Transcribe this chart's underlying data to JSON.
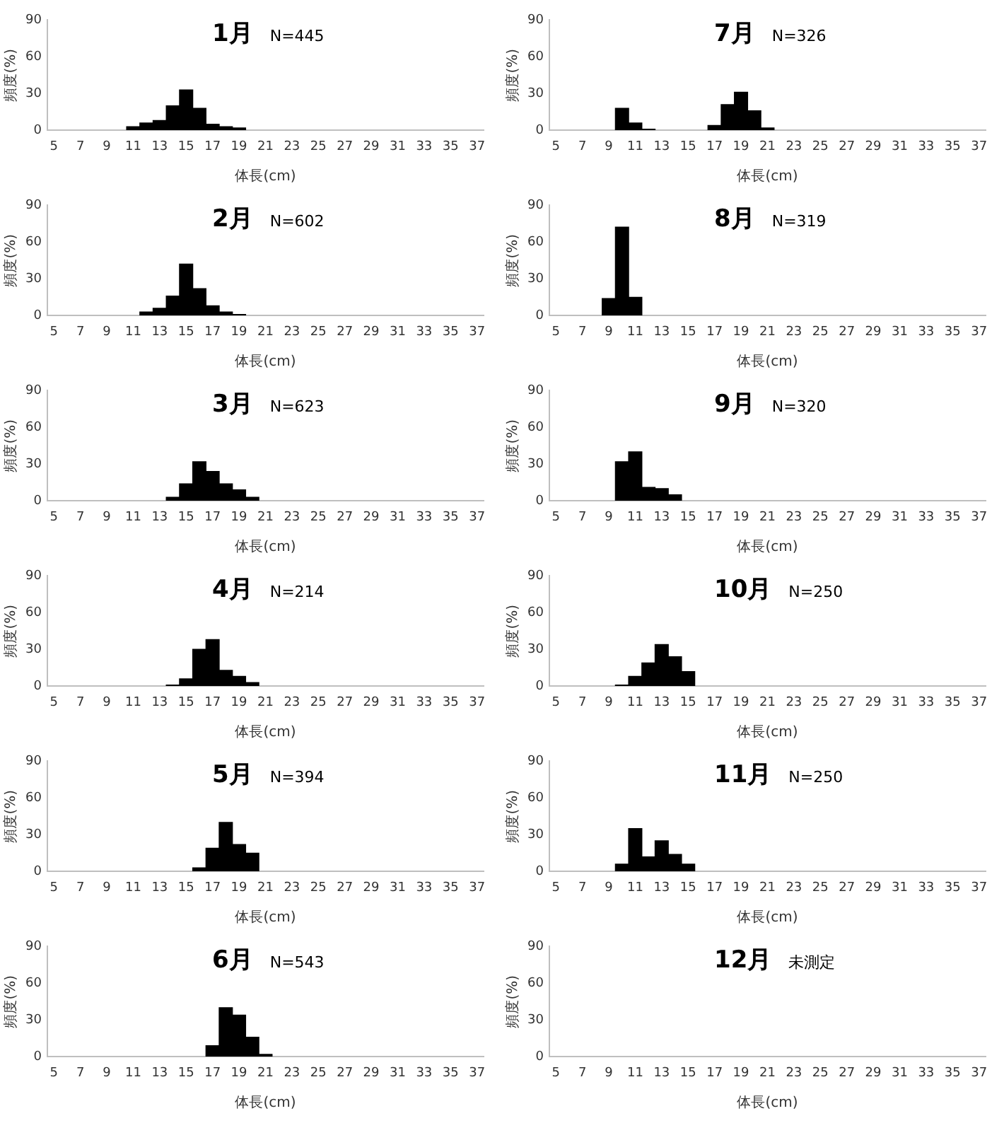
{
  "chart_data": [
    {
      "type": "bar",
      "title": "1月",
      "annotations": [
        "N=445"
      ],
      "categories": [
        "5",
        null,
        "7",
        null,
        "9",
        null,
        "11",
        null,
        "13",
        null,
        "15",
        null,
        "17",
        null,
        "19",
        null,
        "21",
        null,
        "23",
        null,
        "25",
        null,
        "27",
        null,
        "29",
        null,
        "31",
        null,
        "33",
        null,
        "35",
        null,
        "37"
      ],
      "values": [
        null,
        null,
        null,
        null,
        null,
        null,
        3,
        6,
        8,
        20,
        33,
        18,
        5,
        3,
        2,
        null,
        null,
        null,
        null,
        null,
        null,
        null,
        null,
        null,
        null,
        null,
        null,
        null,
        null,
        null,
        null,
        null,
        null
      ],
      "color": "#000000",
      "ylim": [
        0,
        90
      ],
      "yticks": [
        0,
        30,
        60,
        90
      ],
      "xlabel": "体長(cm)",
      "ylabel": "頻度(%)",
      "grid": false
    },
    {
      "type": "bar",
      "title": "7月",
      "annotations": [
        "N=326"
      ],
      "categories": [
        "5",
        null,
        "7",
        null,
        "9",
        null,
        "11",
        null,
        "13",
        null,
        "15",
        null,
        "17",
        null,
        "19",
        null,
        "21",
        null,
        "23",
        null,
        "25",
        null,
        "27",
        null,
        "29",
        null,
        "31",
        null,
        "33",
        null,
        "35",
        null,
        "37"
      ],
      "values": [
        null,
        null,
        null,
        null,
        null,
        18,
        6,
        1,
        null,
        null,
        null,
        null,
        4,
        21,
        31,
        16,
        2,
        null,
        null,
        null,
        null,
        null,
        null,
        null,
        null,
        null,
        null,
        null,
        null,
        null,
        null,
        null,
        null
      ],
      "color": "#000000",
      "ylim": [
        0,
        90
      ],
      "yticks": [
        0,
        30,
        60,
        90
      ],
      "xlabel": "体長(cm)",
      "ylabel": "頻度(%)",
      "grid": false
    },
    {
      "type": "bar",
      "title": "2月",
      "annotations": [
        "N=602"
      ],
      "categories": [
        "5",
        null,
        "7",
        null,
        "9",
        null,
        "11",
        null,
        "13",
        null,
        "15",
        null,
        "17",
        null,
        "19",
        null,
        "21",
        null,
        "23",
        null,
        "25",
        null,
        "27",
        null,
        "29",
        null,
        "31",
        null,
        "33",
        null,
        "35",
        null,
        "37"
      ],
      "values": [
        null,
        null,
        null,
        null,
        null,
        null,
        null,
        3,
        6,
        16,
        42,
        22,
        8,
        3,
        1,
        null,
        null,
        null,
        null,
        null,
        null,
        null,
        null,
        null,
        null,
        null,
        null,
        null,
        null,
        null,
        null,
        null,
        null
      ],
      "color": "#000000",
      "ylim": [
        0,
        90
      ],
      "yticks": [
        0,
        30,
        60,
        90
      ],
      "xlabel": "体長(cm)",
      "ylabel": "頻度(%)",
      "grid": false
    },
    {
      "type": "bar",
      "title": "8月",
      "annotations": [
        "N=319"
      ],
      "categories": [
        "5",
        null,
        "7",
        null,
        "9",
        null,
        "11",
        null,
        "13",
        null,
        "15",
        null,
        "17",
        null,
        "19",
        null,
        "21",
        null,
        "23",
        null,
        "25",
        null,
        "27",
        null,
        "29",
        null,
        "31",
        null,
        "33",
        null,
        "35",
        null,
        "37"
      ],
      "values": [
        null,
        null,
        null,
        null,
        14,
        72,
        15,
        null,
        null,
        null,
        null,
        null,
        null,
        null,
        null,
        null,
        null,
        null,
        null,
        null,
        null,
        null,
        null,
        null,
        null,
        null,
        null,
        null,
        null,
        null,
        null,
        null,
        null
      ],
      "color": "#000000",
      "ylim": [
        0,
        90
      ],
      "yticks": [
        0,
        30,
        60,
        90
      ],
      "xlabel": "体長(cm)",
      "ylabel": "頻度(%)",
      "grid": false
    },
    {
      "type": "bar",
      "title": "3月",
      "annotations": [
        "N=623"
      ],
      "categories": [
        "5",
        null,
        "7",
        null,
        "9",
        null,
        "11",
        null,
        "13",
        null,
        "15",
        null,
        "17",
        null,
        "19",
        null,
        "21",
        null,
        "23",
        null,
        "25",
        null,
        "27",
        null,
        "29",
        null,
        "31",
        null,
        "33",
        null,
        "35",
        null,
        "37"
      ],
      "values": [
        null,
        null,
        null,
        null,
        null,
        null,
        null,
        null,
        null,
        3,
        14,
        32,
        24,
        14,
        9,
        3,
        null,
        null,
        null,
        null,
        null,
        null,
        null,
        null,
        null,
        null,
        null,
        null,
        null,
        null,
        null,
        null,
        null
      ],
      "color": "#000000",
      "ylim": [
        0,
        90
      ],
      "yticks": [
        0,
        30,
        60,
        90
      ],
      "xlabel": "体長(cm)",
      "ylabel": "頻度(%)",
      "grid": false
    },
    {
      "type": "bar",
      "title": "9月",
      "annotations": [
        "N=320"
      ],
      "categories": [
        "5",
        null,
        "7",
        null,
        "9",
        null,
        "11",
        null,
        "13",
        null,
        "15",
        null,
        "17",
        null,
        "19",
        null,
        "21",
        null,
        "23",
        null,
        "25",
        null,
        "27",
        null,
        "29",
        null,
        "31",
        null,
        "33",
        null,
        "35",
        null,
        "37"
      ],
      "values": [
        null,
        null,
        null,
        null,
        null,
        32,
        40,
        11,
        10,
        5,
        null,
        null,
        null,
        null,
        null,
        null,
        null,
        null,
        null,
        null,
        null,
        null,
        null,
        null,
        null,
        null,
        null,
        null,
        null,
        null,
        null,
        null,
        null
      ],
      "color": "#000000",
      "ylim": [
        0,
        90
      ],
      "yticks": [
        0,
        30,
        60,
        90
      ],
      "xlabel": "体長(cm)",
      "ylabel": "頻度(%)",
      "grid": false
    },
    {
      "type": "bar",
      "title": "4月",
      "annotations": [
        "N=214"
      ],
      "categories": [
        "5",
        null,
        "7",
        null,
        "9",
        null,
        "11",
        null,
        "13",
        null,
        "15",
        null,
        "17",
        null,
        "19",
        null,
        "21",
        null,
        "23",
        null,
        "25",
        null,
        "27",
        null,
        "29",
        null,
        "31",
        null,
        "33",
        null,
        "35",
        null,
        "37"
      ],
      "values": [
        null,
        null,
        null,
        null,
        null,
        null,
        null,
        null,
        null,
        1,
        6,
        30,
        38,
        13,
        8,
        3,
        null,
        null,
        null,
        null,
        null,
        null,
        null,
        null,
        null,
        null,
        null,
        null,
        null,
        null,
        null,
        null,
        null
      ],
      "color": "#000000",
      "ylim": [
        0,
        90
      ],
      "yticks": [
        0,
        30,
        60,
        90
      ],
      "xlabel": "体長(cm)",
      "ylabel": "頻度(%)",
      "grid": false
    },
    {
      "type": "bar",
      "title": "10月",
      "annotations": [
        "N=250"
      ],
      "categories": [
        "5",
        null,
        "7",
        null,
        "9",
        null,
        "11",
        null,
        "13",
        null,
        "15",
        null,
        "17",
        null,
        "19",
        null,
        "21",
        null,
        "23",
        null,
        "25",
        null,
        "27",
        null,
        "29",
        null,
        "31",
        null,
        "33",
        null,
        "35",
        null,
        "37"
      ],
      "values": [
        null,
        null,
        null,
        null,
        null,
        1,
        8,
        19,
        34,
        24,
        12,
        null,
        null,
        null,
        null,
        null,
        null,
        null,
        null,
        null,
        null,
        null,
        null,
        null,
        null,
        null,
        null,
        null,
        null,
        null,
        null,
        null,
        null
      ],
      "color": "#000000",
      "ylim": [
        0,
        90
      ],
      "yticks": [
        0,
        30,
        60,
        90
      ],
      "xlabel": "体長(cm)",
      "ylabel": "頻度(%)",
      "grid": false
    },
    {
      "type": "bar",
      "title": "5月",
      "annotations": [
        "N=394"
      ],
      "categories": [
        "5",
        null,
        "7",
        null,
        "9",
        null,
        "11",
        null,
        "13",
        null,
        "15",
        null,
        "17",
        null,
        "19",
        null,
        "21",
        null,
        "23",
        null,
        "25",
        null,
        "27",
        null,
        "29",
        null,
        "31",
        null,
        "33",
        null,
        "35",
        null,
        "37"
      ],
      "values": [
        null,
        null,
        null,
        null,
        null,
        null,
        null,
        null,
        null,
        null,
        null,
        3,
        19,
        40,
        22,
        15,
        null,
        null,
        null,
        null,
        null,
        null,
        null,
        null,
        null,
        null,
        null,
        null,
        null,
        null,
        null,
        null,
        null
      ],
      "color": "#000000",
      "ylim": [
        0,
        90
      ],
      "yticks": [
        0,
        30,
        60,
        90
      ],
      "xlabel": "体長(cm)",
      "ylabel": "頻度(%)",
      "grid": false
    },
    {
      "type": "bar",
      "title": "11月",
      "annotations": [
        "N=250"
      ],
      "categories": [
        "5",
        null,
        "7",
        null,
        "9",
        null,
        "11",
        null,
        "13",
        null,
        "15",
        null,
        "17",
        null,
        "19",
        null,
        "21",
        null,
        "23",
        null,
        "25",
        null,
        "27",
        null,
        "29",
        null,
        "31",
        null,
        "33",
        null,
        "35",
        null,
        "37"
      ],
      "values": [
        null,
        null,
        null,
        null,
        null,
        6,
        35,
        12,
        25,
        14,
        6,
        null,
        null,
        null,
        null,
        null,
        null,
        null,
        null,
        null,
        null,
        null,
        null,
        null,
        null,
        null,
        null,
        null,
        null,
        null,
        null,
        null,
        null
      ],
      "color": "#000000",
      "ylim": [
        0,
        90
      ],
      "yticks": [
        0,
        30,
        60,
        90
      ],
      "xlabel": "体長(cm)",
      "ylabel": "頻度(%)",
      "grid": false
    },
    {
      "type": "bar",
      "title": "6月",
      "annotations": [
        "N=543"
      ],
      "categories": [
        "5",
        null,
        "7",
        null,
        "9",
        null,
        "11",
        null,
        "13",
        null,
        "15",
        null,
        "17",
        null,
        "19",
        null,
        "21",
        null,
        "23",
        null,
        "25",
        null,
        "27",
        null,
        "29",
        null,
        "31",
        null,
        "33",
        null,
        "35",
        null,
        "37"
      ],
      "values": [
        null,
        null,
        null,
        null,
        null,
        null,
        null,
        null,
        null,
        null,
        null,
        null,
        9,
        40,
        34,
        16,
        2,
        null,
        null,
        null,
        null,
        null,
        null,
        null,
        null,
        null,
        null,
        null,
        null,
        null,
        null,
        null,
        null
      ],
      "color": "#000000",
      "ylim": [
        0,
        90
      ],
      "yticks": [
        0,
        30,
        60,
        90
      ],
      "xlabel": "体長(cm)",
      "ylabel": "頻度(%)",
      "grid": false
    },
    {
      "type": "bar",
      "title": "12月",
      "annotations": [
        "未測定"
      ],
      "categories": [
        "5",
        null,
        "7",
        null,
        "9",
        null,
        "11",
        null,
        "13",
        null,
        "15",
        null,
        "17",
        null,
        "19",
        null,
        "21",
        null,
        "23",
        null,
        "25",
        null,
        "27",
        null,
        "29",
        null,
        "31",
        null,
        "33",
        null,
        "35",
        null,
        "37"
      ],
      "values": [
        null,
        null,
        null,
        null,
        null,
        null,
        null,
        null,
        null,
        null,
        null,
        null,
        null,
        null,
        null,
        null,
        null,
        null,
        null,
        null,
        null,
        null,
        null,
        null,
        null,
        null,
        null,
        null,
        null,
        null,
        null,
        null,
        null
      ],
      "color": "#000000",
      "ylim": [
        0,
        90
      ],
      "yticks": [
        0,
        30,
        60,
        90
      ],
      "xlabel": "体長(cm)",
      "ylabel": "頻度(%)",
      "grid": false
    }
  ]
}
